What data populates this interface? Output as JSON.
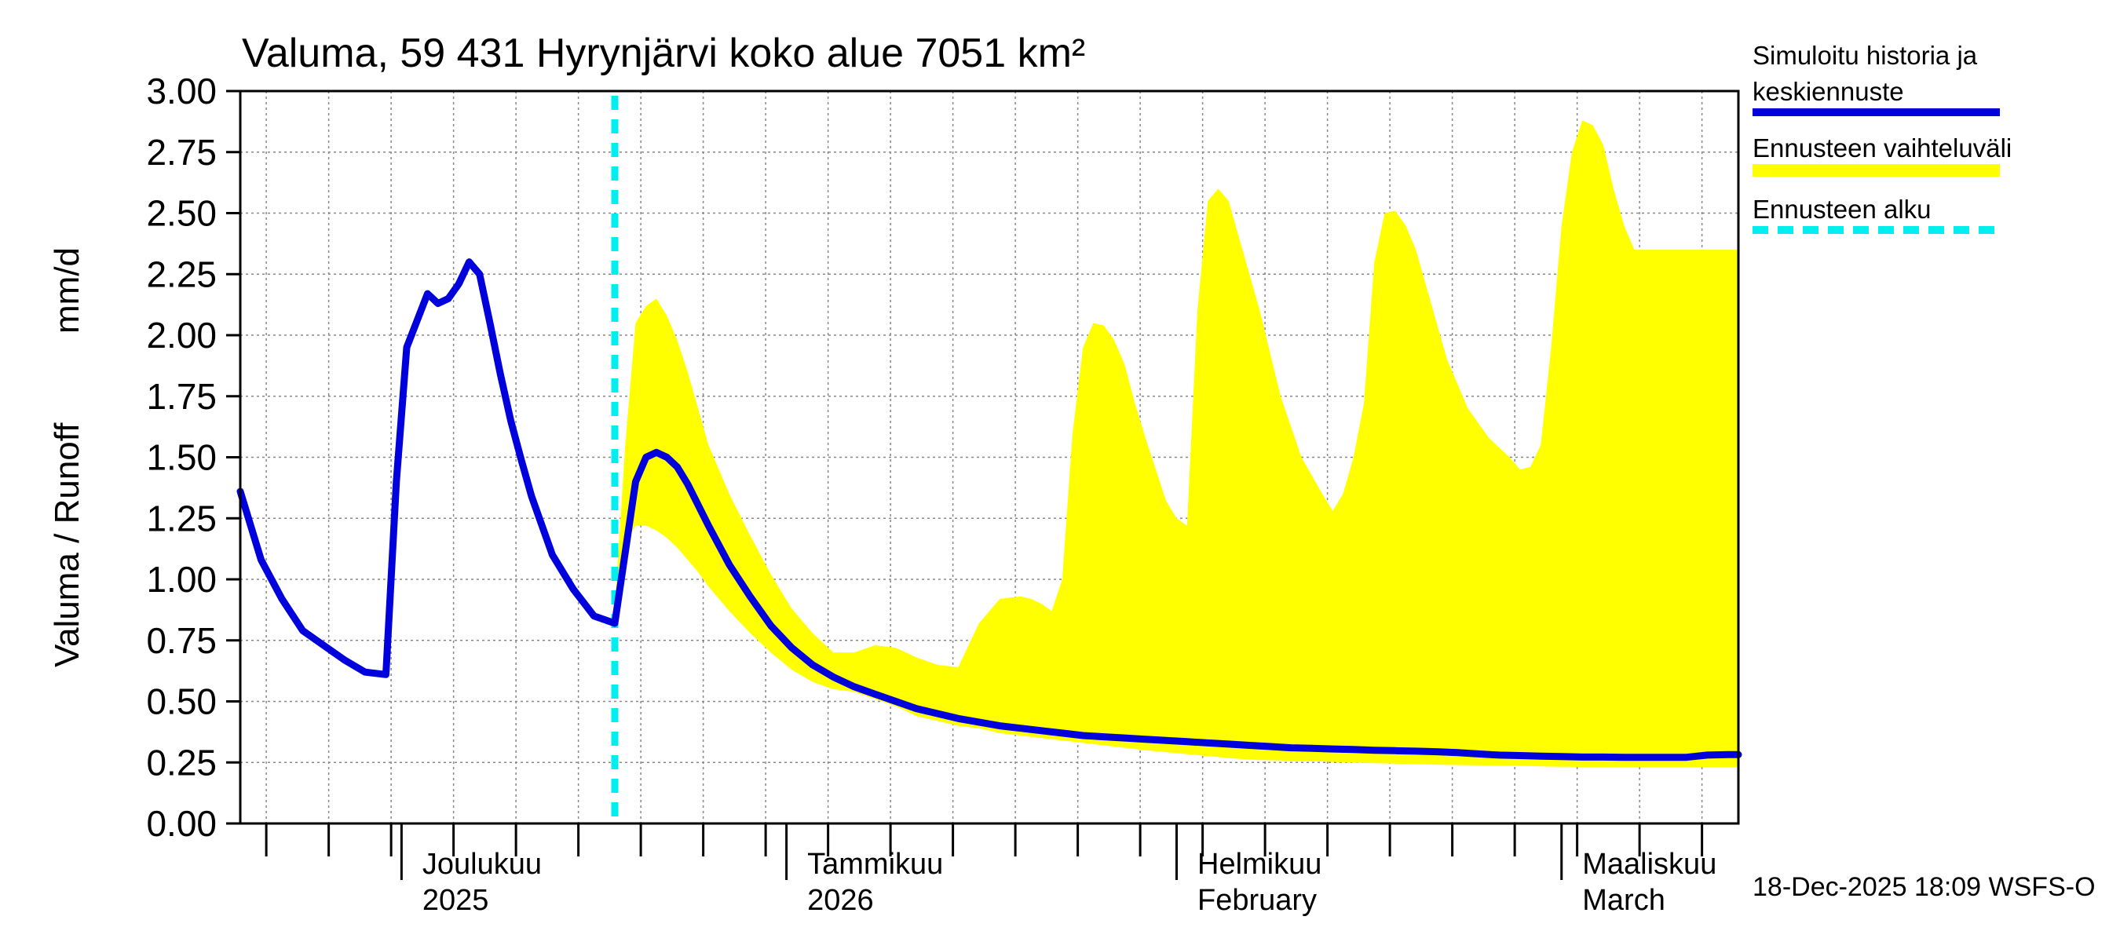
{
  "chart_data": {
    "type": "area",
    "title": "Valuma, 59 431 Hyrynjärvi koko alue 7051 km²",
    "ylabel_fi": "Valuma / Runoff",
    "ylabel_unit": "mm/d",
    "ylim": [
      0,
      3.0
    ],
    "xlim": [
      0,
      144
    ],
    "grid": true,
    "yticks": [
      "0.00",
      "0.25",
      "0.50",
      "0.75",
      "1.00",
      "1.25",
      "1.50",
      "1.75",
      "2.00",
      "2.25",
      "2.50",
      "2.75",
      "3.00"
    ],
    "ytick_values": [
      0,
      0.25,
      0.5,
      0.75,
      1.0,
      1.25,
      1.5,
      1.75,
      2.0,
      2.25,
      2.5,
      2.75,
      3.0
    ],
    "minor_ticks_days": [
      2.5,
      8.5,
      14.5,
      20.5,
      26.5,
      32.5,
      38.5,
      44.5,
      50.5,
      56.5,
      62.5,
      68.5,
      74.5,
      80.5,
      86.5,
      92.5,
      98.5,
      104.5,
      110.5,
      116.5,
      122.5,
      128.5,
      134.5,
      140.5
    ],
    "major_ticks_days": [
      15.5,
      52.5,
      90,
      127
    ],
    "month_labels": [
      {
        "day": 17.5,
        "line1": "Joulukuu",
        "line2": "2025"
      },
      {
        "day": 54.5,
        "line1": "Tammikuu",
        "line2": "2026"
      },
      {
        "day": 92,
        "line1": "Helmikuu",
        "line2": "February"
      },
      {
        "day": 129,
        "line1": "Maaliskuu",
        "line2": "March"
      }
    ],
    "forecast_start_day": 36,
    "series": [
      {
        "name": "Simuloitu historia ja keskiennuste",
        "color": "#0000dd",
        "x": [
          0,
          2,
          4,
          6,
          8,
          10,
          12,
          14,
          15,
          16,
          18,
          19,
          20,
          21,
          22,
          23,
          24,
          25,
          26,
          27,
          28,
          30,
          32,
          34,
          36,
          38,
          39,
          40,
          41,
          42,
          43,
          45,
          47,
          49,
          51,
          53,
          55,
          57,
          59,
          61,
          63,
          65,
          67,
          69,
          71,
          73,
          75,
          77,
          79,
          81,
          83,
          85,
          87,
          89,
          91,
          93,
          95,
          97,
          99,
          101,
          103,
          105,
          107,
          109,
          111,
          113,
          115,
          117,
          119,
          121,
          123,
          125,
          127,
          129,
          131,
          133,
          135,
          137,
          139,
          141,
          143,
          144
        ],
        "values": [
          1.36,
          1.08,
          0.92,
          0.79,
          0.73,
          0.67,
          0.62,
          0.61,
          1.4,
          1.95,
          2.17,
          2.13,
          2.15,
          2.21,
          2.3,
          2.25,
          2.05,
          1.84,
          1.65,
          1.49,
          1.34,
          1.1,
          0.96,
          0.85,
          0.82,
          1.4,
          1.5,
          1.52,
          1.5,
          1.46,
          1.39,
          1.22,
          1.06,
          0.93,
          0.81,
          0.72,
          0.65,
          0.6,
          0.56,
          0.53,
          0.5,
          0.47,
          0.45,
          0.43,
          0.415,
          0.4,
          0.39,
          0.38,
          0.37,
          0.36,
          0.355,
          0.35,
          0.345,
          0.34,
          0.335,
          0.33,
          0.325,
          0.32,
          0.315,
          0.31,
          0.308,
          0.305,
          0.303,
          0.3,
          0.298,
          0.296,
          0.294,
          0.29,
          0.285,
          0.28,
          0.278,
          0.276,
          0.274,
          0.272,
          0.272,
          0.271,
          0.271,
          0.271,
          0.271,
          0.28,
          0.282,
          0.282
        ]
      }
    ],
    "band": {
      "name": "Ennusteen vaihteluväli",
      "color": "#ffff00",
      "x": [
        36,
        37,
        38,
        39,
        40,
        41,
        42,
        43,
        44,
        45,
        47,
        49,
        51,
        53,
        55,
        57,
        59,
        61,
        63,
        64,
        65,
        67,
        69,
        71,
        73,
        75,
        76,
        77,
        78,
        79,
        80,
        81,
        82,
        83,
        84,
        85,
        86,
        87,
        88,
        89,
        90,
        91,
        92,
        93,
        94,
        95,
        96,
        97,
        98,
        100,
        102,
        104,
        105,
        106,
        107,
        108,
        109,
        110,
        111,
        112,
        113,
        114,
        115,
        116,
        118,
        120,
        122,
        123,
        124,
        125,
        126,
        127,
        128,
        129,
        130,
        131,
        132,
        133,
        134,
        135,
        136,
        137,
        138,
        139,
        140,
        141,
        142,
        143,
        144
      ],
      "upper": [
        0.88,
        1.55,
        2.05,
        2.12,
        2.15,
        2.08,
        1.98,
        1.85,
        1.7,
        1.55,
        1.35,
        1.18,
        1.02,
        0.88,
        0.78,
        0.7,
        0.7,
        0.73,
        0.72,
        0.7,
        0.68,
        0.65,
        0.64,
        0.82,
        0.92,
        0.93,
        0.92,
        0.9,
        0.87,
        1.0,
        1.6,
        1.95,
        2.05,
        2.04,
        1.98,
        1.88,
        1.72,
        1.58,
        1.45,
        1.32,
        1.25,
        1.22,
        2.1,
        2.55,
        2.6,
        2.55,
        2.4,
        2.25,
        2.1,
        1.75,
        1.5,
        1.35,
        1.28,
        1.35,
        1.5,
        1.72,
        2.3,
        2.5,
        2.51,
        2.45,
        2.35,
        2.2,
        2.05,
        1.9,
        1.7,
        1.58,
        1.5,
        1.45,
        1.46,
        1.55,
        1.95,
        2.45,
        2.75,
        2.88,
        2.86,
        2.78,
        2.6,
        2.45,
        2.35,
        2.35,
        2.35,
        2.35,
        2.35,
        2.35,
        2.35,
        2.35,
        2.35,
        2.35,
        2.35
      ],
      "lower": [
        0.82,
        1.15,
        1.22,
        1.22,
        1.2,
        1.17,
        1.13,
        1.08,
        1.03,
        0.97,
        0.87,
        0.78,
        0.7,
        0.63,
        0.58,
        0.55,
        0.54,
        0.51,
        0.48,
        0.46,
        0.44,
        0.42,
        0.4,
        0.39,
        0.37,
        0.36,
        0.355,
        0.35,
        0.345,
        0.34,
        0.335,
        0.33,
        0.325,
        0.32,
        0.315,
        0.31,
        0.305,
        0.3,
        0.296,
        0.292,
        0.288,
        0.284,
        0.28,
        0.276,
        0.272,
        0.268,
        0.265,
        0.262,
        0.26,
        0.258,
        0.256,
        0.254,
        0.252,
        0.25,
        0.249,
        0.248,
        0.247,
        0.246,
        0.245,
        0.244,
        0.243,
        0.242,
        0.241,
        0.24,
        0.239,
        0.238,
        0.237,
        0.236,
        0.235,
        0.234,
        0.233,
        0.232,
        0.232,
        0.231,
        0.231,
        0.231,
        0.231,
        0.231,
        0.231,
        0.231,
        0.231,
        0.231,
        0.231,
        0.231,
        0.231,
        0.231,
        0.231,
        0.231,
        0.231
      ]
    }
  },
  "legend": {
    "history_line1": "Simuloitu historia ja",
    "history_line2": "keskiennuste",
    "range_label": "Ennusteen vaihteluväli",
    "start_label": "Ennusteen alku"
  },
  "colors": {
    "history": "#0000dd",
    "range": "#ffff00",
    "forecast_start": "#00eeee",
    "grid": "#888888"
  },
  "footer": {
    "timestamp": "18-Dec-2025 18:09 WSFS-O"
  }
}
